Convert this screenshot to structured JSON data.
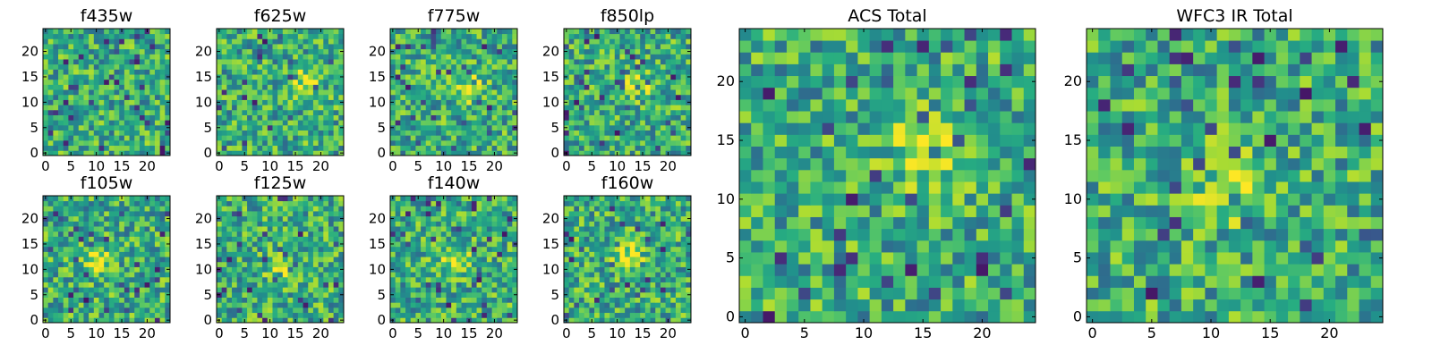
{
  "figure": {
    "colormap": "viridis",
    "colormap_stops": [
      "#440154",
      "#3b528b",
      "#21918c",
      "#5ec962",
      "#fde725"
    ],
    "background": "#ffffff"
  },
  "chart_data": [
    {
      "type": "heatmap",
      "title": "f435w",
      "grid_size": 25,
      "xticks": [
        0,
        5,
        10,
        15,
        20
      ],
      "yticks": [
        0,
        5,
        10,
        15,
        20
      ],
      "xlim": [
        -0.5,
        24.5
      ],
      "ylim": [
        -0.5,
        24.5
      ],
      "xlabel": "",
      "ylabel": "",
      "value_range": [
        0,
        1
      ],
      "values": [],
      "hotspot": null
    },
    {
      "type": "heatmap",
      "title": "f625w",
      "grid_size": 25,
      "xticks": [
        0,
        5,
        10,
        15,
        20
      ],
      "yticks": [
        0,
        5,
        10,
        15,
        20
      ],
      "xlim": [
        -0.5,
        24.5
      ],
      "ylim": [
        -0.5,
        24.5
      ],
      "xlabel": "",
      "ylabel": "",
      "value_range": [
        0,
        1
      ],
      "values": [],
      "hotspot": [
        17,
        14
      ]
    },
    {
      "type": "heatmap",
      "title": "f775w",
      "grid_size": 25,
      "xticks": [
        0,
        5,
        10,
        15,
        20
      ],
      "yticks": [
        0,
        5,
        10,
        15,
        20
      ],
      "xlim": [
        -0.5,
        24.5
      ],
      "ylim": [
        -0.5,
        24.5
      ],
      "xlabel": "",
      "ylabel": "",
      "value_range": [
        0,
        1
      ],
      "values": [],
      "hotspot": [
        15,
        13
      ]
    },
    {
      "type": "heatmap",
      "title": "f850lp",
      "grid_size": 25,
      "xticks": [
        0,
        5,
        10,
        15,
        20
      ],
      "yticks": [
        0,
        5,
        10,
        15,
        20
      ],
      "xlim": [
        -0.5,
        24.5
      ],
      "ylim": [
        -0.5,
        24.5
      ],
      "xlabel": "",
      "ylabel": "",
      "value_range": [
        0,
        1
      ],
      "values": [],
      "hotspot": [
        14,
        14
      ]
    },
    {
      "type": "heatmap",
      "title": "f105w",
      "grid_size": 25,
      "xticks": [
        0,
        5,
        10,
        15,
        20
      ],
      "yticks": [
        0,
        5,
        10,
        15,
        20
      ],
      "xlim": [
        -0.5,
        24.5
      ],
      "ylim": [
        -0.5,
        24.5
      ],
      "xlabel": "",
      "ylabel": "",
      "value_range": [
        0,
        1
      ],
      "values": [],
      "hotspot": [
        10,
        12
      ]
    },
    {
      "type": "heatmap",
      "title": "f125w",
      "grid_size": 25,
      "xticks": [
        0,
        5,
        10,
        15,
        20
      ],
      "yticks": [
        0,
        5,
        10,
        15,
        20
      ],
      "xlim": [
        -0.5,
        24.5
      ],
      "ylim": [
        -0.5,
        24.5
      ],
      "xlabel": "",
      "ylabel": "",
      "value_range": [
        0,
        1
      ],
      "values": [],
      "hotspot": [
        12,
        11
      ]
    },
    {
      "type": "heatmap",
      "title": "f140w",
      "grid_size": 25,
      "xticks": [
        0,
        5,
        10,
        15,
        20
      ],
      "yticks": [
        0,
        5,
        10,
        15,
        20
      ],
      "xlim": [
        -0.5,
        24.5
      ],
      "ylim": [
        -0.5,
        24.5
      ],
      "xlabel": "",
      "ylabel": "",
      "value_range": [
        0,
        1
      ],
      "values": [],
      "hotspot": [
        12,
        12
      ]
    },
    {
      "type": "heatmap",
      "title": "f160w",
      "grid_size": 25,
      "xticks": [
        0,
        5,
        10,
        15,
        20
      ],
      "yticks": [
        0,
        5,
        10,
        15,
        20
      ],
      "xlim": [
        -0.5,
        24.5
      ],
      "ylim": [
        -0.5,
        24.5
      ],
      "xlabel": "",
      "ylabel": "",
      "value_range": [
        0,
        1
      ],
      "values": [],
      "hotspot": [
        12,
        13
      ]
    },
    {
      "type": "heatmap",
      "title": "ACS Total",
      "grid_size": 25,
      "xticks": [
        0,
        5,
        10,
        15,
        20
      ],
      "yticks": [
        0,
        5,
        10,
        15,
        20
      ],
      "xlim": [
        -0.5,
        24.5
      ],
      "ylim": [
        -0.5,
        24.5
      ],
      "xlabel": "",
      "ylabel": "",
      "value_range": [
        0,
        1
      ],
      "values": [],
      "hotspot": [
        15,
        14
      ]
    },
    {
      "type": "heatmap",
      "title": "WFC3 IR Total",
      "grid_size": 25,
      "xticks": [
        0,
        5,
        10,
        15,
        20
      ],
      "yticks": [
        0,
        5,
        10,
        15,
        20
      ],
      "xlim": [
        -0.5,
        24.5
      ],
      "ylim": [
        -0.5,
        24.5
      ],
      "xlabel": "",
      "ylabel": "",
      "value_range": [
        0,
        1
      ],
      "values": [],
      "hotspot": [
        12,
        11
      ]
    }
  ]
}
